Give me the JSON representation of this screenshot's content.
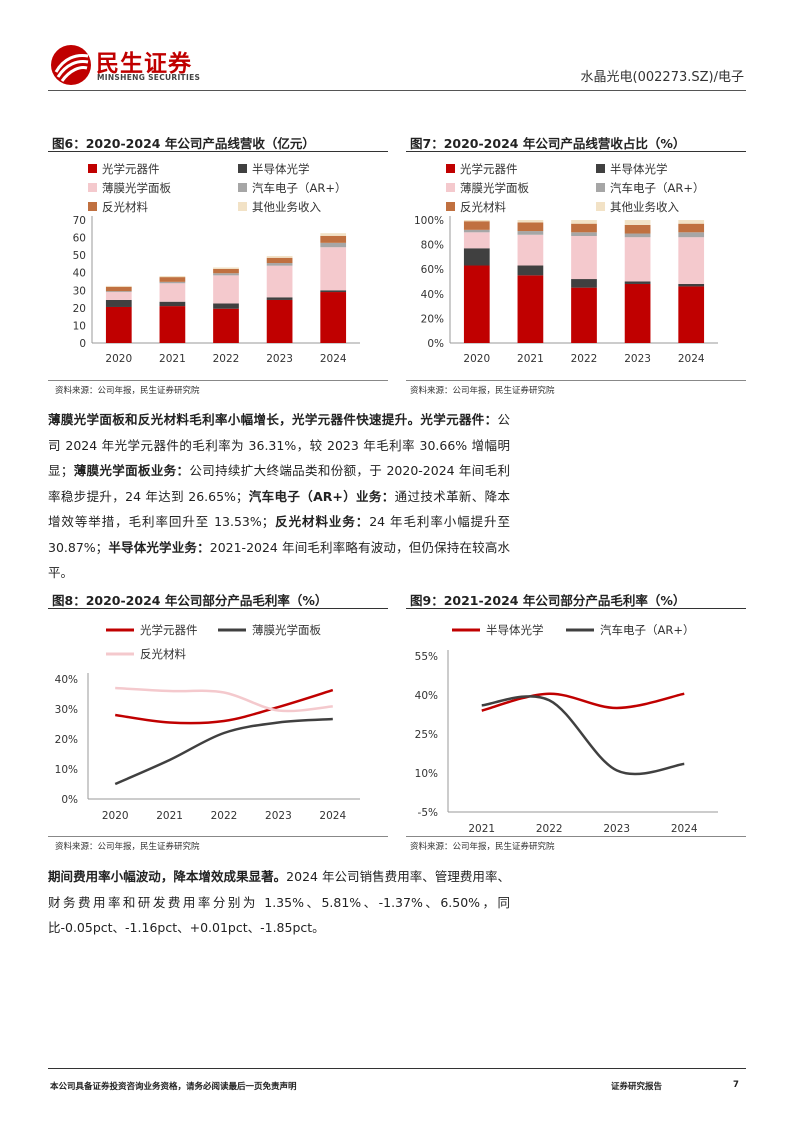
{
  "header": {
    "logo_cn": "民生证券",
    "logo_en": "MINSHENG SECURITIES",
    "right": "水晶光电(002273.SZ)/电子"
  },
  "colors": {
    "red": "#c00000",
    "dark": "#404040",
    "pink": "#f4c9cd",
    "grey": "#a6a6a6",
    "brown": "#c07040",
    "beige": "#f2e2c6"
  },
  "fig6": {
    "title": "图6：2020-2024 年公司产品线营收（亿元）",
    "source": "资料来源：公司年报，民生证券研究院",
    "chart_data": {
      "type": "bar",
      "stacked": true,
      "categories": [
        "2020",
        "2021",
        "2022",
        "2023",
        "2024"
      ],
      "ylim": [
        0,
        70
      ],
      "yticks": [
        "0",
        "10",
        "20",
        "30",
        "40",
        "50",
        "60",
        "70"
      ],
      "series": [
        {
          "name": "光学元器件",
          "color": "#c00000",
          "values": [
            20.5,
            21.0,
            19.5,
            24.5,
            29.0
          ]
        },
        {
          "name": "半导体光学",
          "color": "#404040",
          "values": [
            4.0,
            2.5,
            3.0,
            1.5,
            1.0
          ]
        },
        {
          "name": "薄膜光学面板",
          "color": "#f4c9cd",
          "values": [
            4.5,
            10.5,
            16.0,
            18.0,
            24.5
          ]
        },
        {
          "name": "汽车电子（AR+）",
          "color": "#a6a6a6",
          "values": [
            0.5,
            0.8,
            1.2,
            1.5,
            2.5
          ]
        },
        {
          "name": "反光材料",
          "color": "#c07040",
          "values": [
            2.5,
            2.7,
            2.5,
            3.0,
            4.0
          ]
        },
        {
          "name": "其他业务收入",
          "color": "#f2e2c6",
          "values": [
            0.5,
            0.6,
            0.8,
            1.0,
            1.5
          ]
        }
      ]
    }
  },
  "fig7": {
    "title": "图7：2020-2024 年公司产品线营收占比（%）",
    "source": "资料来源：公司年报，民生证券研究院",
    "chart_data": {
      "type": "bar",
      "stacked": true,
      "categories": [
        "2020",
        "2021",
        "2022",
        "2023",
        "2024"
      ],
      "ylim": [
        0,
        100
      ],
      "yticks": [
        "0%",
        "20%",
        "40%",
        "60%",
        "80%",
        "100%"
      ],
      "series": [
        {
          "name": "光学元器件",
          "color": "#c00000",
          "values": [
            63,
            55,
            45,
            48,
            46
          ]
        },
        {
          "name": "半导体光学",
          "color": "#404040",
          "values": [
            14,
            8,
            7,
            2,
            2
          ]
        },
        {
          "name": "薄膜光学面板",
          "color": "#f4c9cd",
          "values": [
            13,
            25,
            35,
            36,
            38
          ]
        },
        {
          "name": "汽车电子（AR+）",
          "color": "#a6a6a6",
          "values": [
            2,
            3,
            3,
            3,
            4
          ]
        },
        {
          "name": "反光材料",
          "color": "#c07040",
          "values": [
            7,
            7,
            7,
            7,
            7
          ]
        },
        {
          "name": "其他业务收入",
          "color": "#f2e2c6",
          "values": [
            1,
            2,
            3,
            4,
            3
          ]
        }
      ]
    }
  },
  "para1": {
    "b1": "薄膜光学面板和反光材料毛利率小幅增长，光学元器件快速提升。光学元器件：",
    "t1": "公司 2024 年光学元器件的毛利率为 36.31%，较 2023 年毛利率 30.66% 增幅明显；",
    "b2": "薄膜光学面板业务：",
    "t2": "公司持续扩大终端品类和份额，于 2020-2024 年间毛利率稳步提升，24 年达到 26.65%；",
    "b3": "汽车电子（AR+）业务：",
    "t3": "通过技术革新、降本增效等举措，毛利率回升至 13.53%；",
    "b4": "反光材料业务：",
    "t4": "24 年毛利率小幅提升至 30.87%；",
    "b5": "半导体光学业务：",
    "t5": "2021-2024 年间毛利率略有波动，但仍保持在较高水平。"
  },
  "fig8": {
    "title": "图8：2020-2024 年公司部分产品毛利率（%）",
    "source": "资料来源：公司年报，民生证券研究院",
    "chart_data": {
      "type": "line",
      "x": [
        "2020",
        "2021",
        "2022",
        "2023",
        "2024"
      ],
      "ylim": [
        0,
        40
      ],
      "yticks": [
        "0%",
        "10%",
        "20%",
        "30%",
        "40%"
      ],
      "series": [
        {
          "name": "光学元器件",
          "color": "#c00000",
          "values": [
            28,
            25.5,
            26,
            30.66,
            36.31
          ]
        },
        {
          "name": "薄膜光学面板",
          "color": "#404040",
          "values": [
            5,
            13,
            22,
            25.5,
            26.65
          ]
        },
        {
          "name": "反光材料",
          "color": "#f4c9cd",
          "values": [
            37,
            36,
            35.5,
            29.5,
            30.87
          ]
        }
      ]
    }
  },
  "fig9": {
    "title": "图9：2021-2024 年公司部分产品毛利率（%）",
    "source": "资料来源：公司年报，民生证券研究院",
    "chart_data": {
      "type": "line",
      "x": [
        "2021",
        "2022",
        "2023",
        "2024"
      ],
      "ylim": [
        -5,
        55
      ],
      "yticks": [
        "-5%",
        "10%",
        "25%",
        "40%",
        "55%"
      ],
      "series": [
        {
          "name": "半导体光学",
          "color": "#c00000",
          "values": [
            34,
            40.5,
            35,
            40.5
          ]
        },
        {
          "name": "汽车电子（AR+）",
          "color": "#404040",
          "values": [
            36,
            38,
            11,
            13.53
          ]
        }
      ]
    }
  },
  "para2": {
    "b1": "期间费用率小幅波动，降本增效成果显著。",
    "t1": "2024 年公司销售费用率、管理费用率、财务费用率和研发费用率分别为 1.35%、5.81%、-1.37%、6.50%，同比-0.05pct、-1.16pct、+0.01pct、-1.85pct。"
  },
  "footer": {
    "left": "本公司具备证券投资咨询业务资格，请务必阅读最后一页免责声明",
    "center": "证券研究报告",
    "page": "7"
  }
}
